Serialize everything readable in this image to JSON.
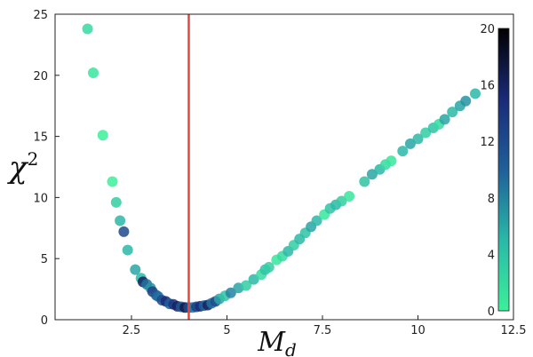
{
  "chart_data": {
    "type": "scatter",
    "title": "",
    "xlabel": "M",
    "xlabel_sub": "d",
    "ylabel": "χ",
    "ylabel_sup": "2",
    "xlim": [
      0.5,
      12.5
    ],
    "ylim": [
      0,
      25
    ],
    "xticks": [
      2.5,
      5,
      7.5,
      10,
      12.5
    ],
    "xtick_labels": [
      "2.5",
      "5",
      "7.5",
      "10",
      "12.5"
    ],
    "yticks": [
      0,
      5,
      10,
      15,
      20,
      25
    ],
    "ytick_labels": [
      "0",
      "5",
      "10",
      "15",
      "20",
      "25"
    ],
    "grid": false,
    "vertical_line": {
      "x": 4.0,
      "color": "#e8443a"
    },
    "colorbar": {
      "range": [
        0,
        20
      ],
      "ticks": [
        0,
        4,
        8,
        12,
        16,
        20
      ],
      "tick_labels": [
        "0",
        "4",
        "8",
        "12",
        "16",
        "20"
      ],
      "colors": [
        "#3cf09a",
        "#2ab8a8",
        "#1f5f9a",
        "#1a2a78",
        "#000000"
      ]
    },
    "points": [
      {
        "x": 1.35,
        "y": 23.8,
        "c": 2
      },
      {
        "x": 1.5,
        "y": 20.2,
        "c": 1
      },
      {
        "x": 1.75,
        "y": 15.1,
        "c": 0
      },
      {
        "x": 2.0,
        "y": 11.3,
        "c": 0
      },
      {
        "x": 2.1,
        "y": 9.6,
        "c": 3
      },
      {
        "x": 2.2,
        "y": 8.1,
        "c": 5
      },
      {
        "x": 2.3,
        "y": 7.2,
        "c": 12
      },
      {
        "x": 2.4,
        "y": 5.7,
        "c": 5
      },
      {
        "x": 2.6,
        "y": 4.1,
        "c": 6
      },
      {
        "x": 2.75,
        "y": 3.4,
        "c": 5
      },
      {
        "x": 2.8,
        "y": 3.1,
        "c": 16
      },
      {
        "x": 2.9,
        "y": 2.9,
        "c": 9
      },
      {
        "x": 3.0,
        "y": 2.6,
        "c": 7
      },
      {
        "x": 3.05,
        "y": 2.3,
        "c": 13
      },
      {
        "x": 3.15,
        "y": 2.0,
        "c": 11
      },
      {
        "x": 3.2,
        "y": 1.9,
        "c": 9
      },
      {
        "x": 3.3,
        "y": 1.6,
        "c": 12
      },
      {
        "x": 3.4,
        "y": 1.5,
        "c": 15
      },
      {
        "x": 3.5,
        "y": 1.3,
        "c": 10
      },
      {
        "x": 3.6,
        "y": 1.25,
        "c": 14
      },
      {
        "x": 3.7,
        "y": 1.1,
        "c": 16
      },
      {
        "x": 3.8,
        "y": 1.05,
        "c": 11
      },
      {
        "x": 3.9,
        "y": 1.0,
        "c": 17
      },
      {
        "x": 4.0,
        "y": 1.0,
        "c": 12
      },
      {
        "x": 4.1,
        "y": 1.0,
        "c": 8
      },
      {
        "x": 4.2,
        "y": 1.05,
        "c": 13
      },
      {
        "x": 4.3,
        "y": 1.1,
        "c": 15
      },
      {
        "x": 4.4,
        "y": 1.15,
        "c": 10
      },
      {
        "x": 4.5,
        "y": 1.2,
        "c": 16
      },
      {
        "x": 4.6,
        "y": 1.35,
        "c": 9
      },
      {
        "x": 4.7,
        "y": 1.5,
        "c": 12
      },
      {
        "x": 4.8,
        "y": 1.7,
        "c": 6
      },
      {
        "x": 4.95,
        "y": 1.95,
        "c": 4
      },
      {
        "x": 5.1,
        "y": 2.2,
        "c": 8
      },
      {
        "x": 5.3,
        "y": 2.6,
        "c": 6
      },
      {
        "x": 5.5,
        "y": 2.8,
        "c": 3
      },
      {
        "x": 5.7,
        "y": 3.3,
        "c": 5
      },
      {
        "x": 5.9,
        "y": 3.7,
        "c": 2
      },
      {
        "x": 6.0,
        "y": 4.1,
        "c": 4
      },
      {
        "x": 6.1,
        "y": 4.3,
        "c": 3
      },
      {
        "x": 6.3,
        "y": 4.9,
        "c": 1
      },
      {
        "x": 6.45,
        "y": 5.2,
        "c": 2
      },
      {
        "x": 6.6,
        "y": 5.6,
        "c": 5
      },
      {
        "x": 6.75,
        "y": 6.1,
        "c": 3
      },
      {
        "x": 6.9,
        "y": 6.6,
        "c": 5
      },
      {
        "x": 7.05,
        "y": 7.1,
        "c": 4
      },
      {
        "x": 7.2,
        "y": 7.6,
        "c": 6
      },
      {
        "x": 7.35,
        "y": 8.1,
        "c": 5
      },
      {
        "x": 7.55,
        "y": 8.6,
        "c": 1
      },
      {
        "x": 7.7,
        "y": 9.1,
        "c": 4
      },
      {
        "x": 7.85,
        "y": 9.4,
        "c": 5
      },
      {
        "x": 8.0,
        "y": 9.7,
        "c": 3
      },
      {
        "x": 8.2,
        "y": 10.1,
        "c": 1
      },
      {
        "x": 8.6,
        "y": 11.3,
        "c": 4
      },
      {
        "x": 8.8,
        "y": 11.9,
        "c": 6
      },
      {
        "x": 9.0,
        "y": 12.3,
        "c": 5
      },
      {
        "x": 9.15,
        "y": 12.7,
        "c": 2
      },
      {
        "x": 9.3,
        "y": 13.0,
        "c": 1
      },
      {
        "x": 9.6,
        "y": 13.8,
        "c": 5
      },
      {
        "x": 9.8,
        "y": 14.4,
        "c": 6
      },
      {
        "x": 10.0,
        "y": 14.8,
        "c": 5
      },
      {
        "x": 10.2,
        "y": 15.3,
        "c": 3
      },
      {
        "x": 10.4,
        "y": 15.7,
        "c": 4
      },
      {
        "x": 10.55,
        "y": 16.0,
        "c": 2
      },
      {
        "x": 10.7,
        "y": 16.4,
        "c": 6
      },
      {
        "x": 10.9,
        "y": 17.0,
        "c": 5
      },
      {
        "x": 11.1,
        "y": 17.5,
        "c": 6
      },
      {
        "x": 11.25,
        "y": 17.9,
        "c": 7
      },
      {
        "x": 11.5,
        "y": 18.5,
        "c": 5
      }
    ]
  }
}
